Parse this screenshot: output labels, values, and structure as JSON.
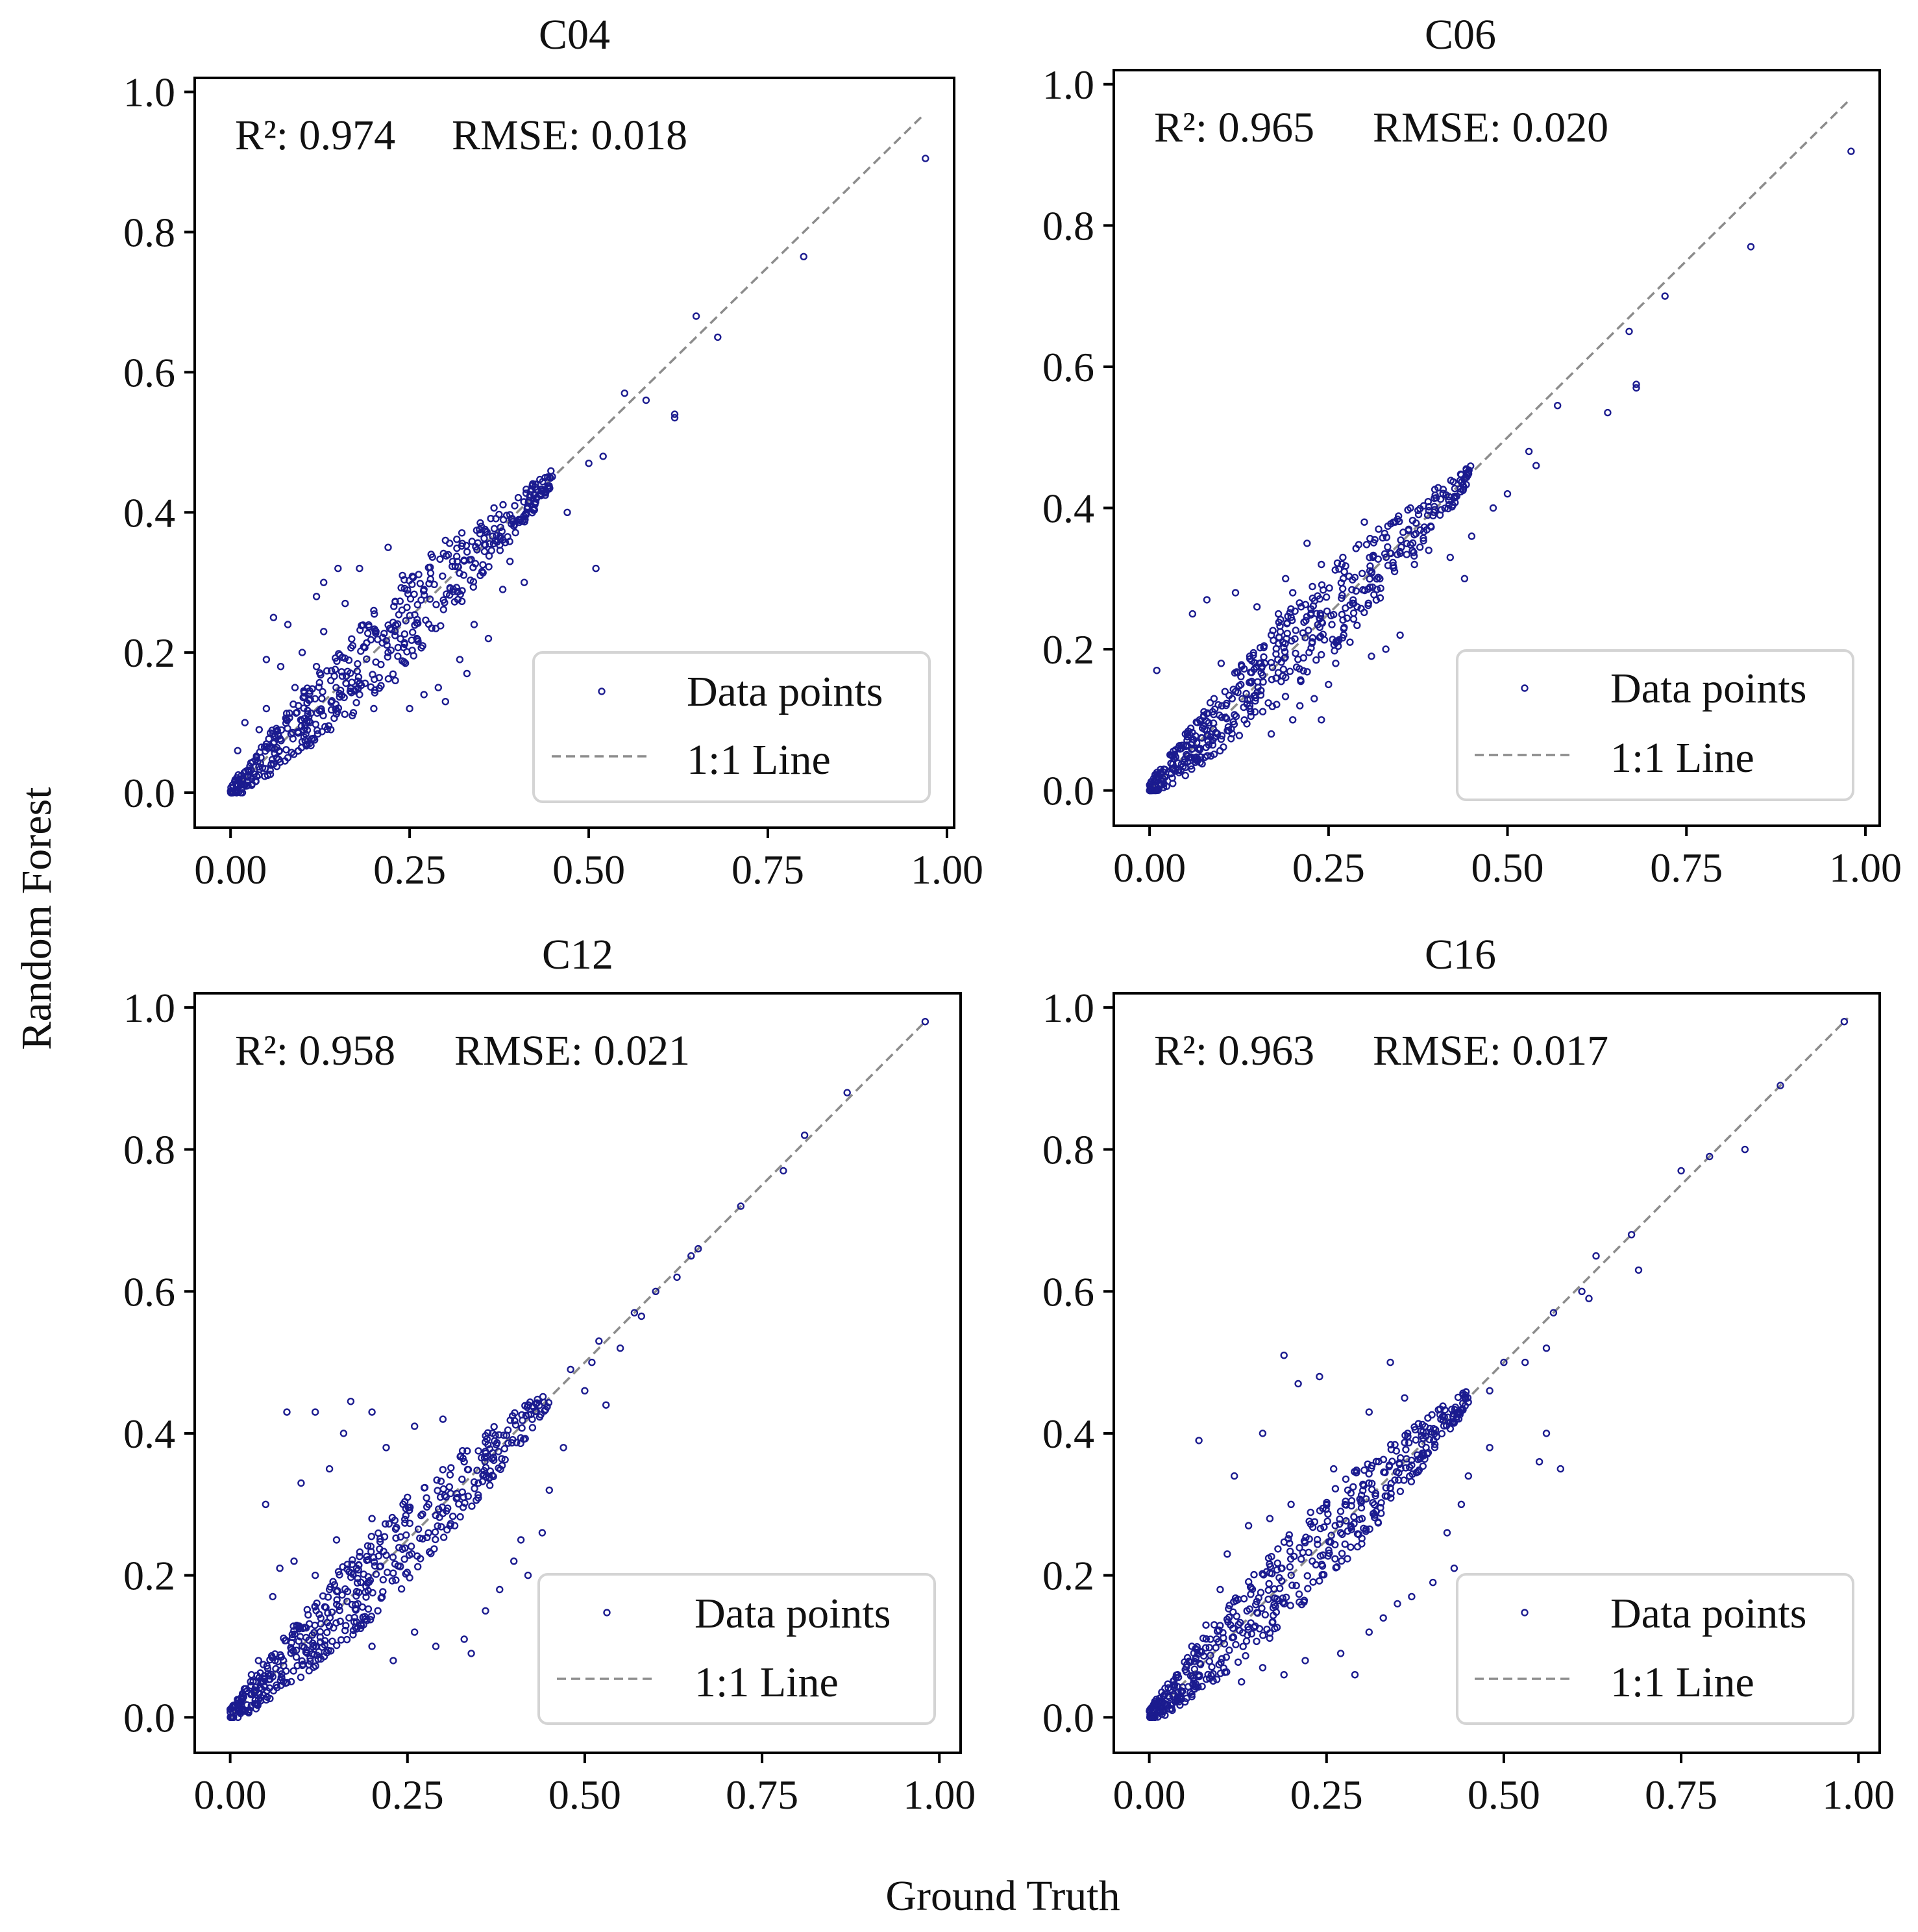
{
  "figure": {
    "x_label": "Ground Truth",
    "y_label": "Random Forest"
  },
  "colors": {
    "points": "#1b1b8f",
    "one_to_one_line": "#8c8c8c",
    "axes": "#000000",
    "legend_border": "#d4d4d4"
  },
  "chart_data": [
    {
      "type": "scatter",
      "title": "C04",
      "xlabel": "Ground Truth",
      "ylabel": "Random Forest",
      "xlim": [
        -0.05,
        1.01
      ],
      "ylim": [
        -0.05,
        1.02
      ],
      "xticks": [
        "0.00",
        "0.25",
        "0.50",
        "0.75",
        "1.00"
      ],
      "yticks": [
        "0.0",
        "0.2",
        "0.4",
        "0.6",
        "0.8",
        "1.0"
      ],
      "r2_label": "R²: 0.974",
      "rmse_label": "RMSE: 0.018",
      "legend": [
        "Data points",
        "1:1 Line"
      ],
      "legend_position": "lower right",
      "one_to_one_line": [
        0.0,
        0.967
      ],
      "points": [
        [
          0.97,
          0.905
        ],
        [
          0.8,
          0.765
        ],
        [
          0.65,
          0.68
        ],
        [
          0.68,
          0.65
        ],
        [
          0.62,
          0.54
        ],
        [
          0.62,
          0.535
        ],
        [
          0.55,
          0.57
        ],
        [
          0.58,
          0.56
        ],
        [
          0.52,
          0.48
        ],
        [
          0.5,
          0.47
        ],
        [
          0.51,
          0.32
        ],
        [
          0.47,
          0.4
        ],
        [
          0.44,
          0.43
        ],
        [
          0.41,
          0.3
        ],
        [
          0.39,
          0.33
        ],
        [
          0.38,
          0.29
        ],
        [
          0.06,
          0.25
        ],
        [
          0.08,
          0.24
        ],
        [
          0.12,
          0.28
        ],
        [
          0.15,
          0.32
        ],
        [
          0.18,
          0.32
        ],
        [
          0.13,
          0.3
        ],
        [
          0.3,
          0.36
        ],
        [
          0.28,
          0.34
        ],
        [
          0.24,
          0.31
        ],
        [
          0.22,
          0.35
        ],
        [
          0.25,
          0.12
        ],
        [
          0.27,
          0.14
        ],
        [
          0.23,
          0.16
        ],
        [
          0.29,
          0.15
        ],
        [
          0.3,
          0.13
        ],
        [
          0.2,
          0.12
        ],
        [
          0.17,
          0.11
        ],
        [
          0.14,
          0.09
        ],
        [
          0.11,
          0.07
        ],
        [
          0.09,
          0.15
        ],
        [
          0.07,
          0.18
        ],
        [
          0.05,
          0.19
        ],
        [
          0.1,
          0.2
        ],
        [
          0.13,
          0.23
        ],
        [
          0.16,
          0.27
        ],
        [
          0.2,
          0.26
        ],
        [
          0.36,
          0.22
        ],
        [
          0.34,
          0.24
        ],
        [
          0.32,
          0.19
        ],
        [
          0.33,
          0.17
        ],
        [
          0.35,
          0.38
        ],
        [
          0.31,
          0.33
        ],
        [
          0.01,
          0.06
        ],
        [
          0.02,
          0.1
        ],
        [
          0.04,
          0.09
        ],
        [
          0.05,
          0.12
        ],
        [
          0.03,
          0.02
        ],
        [
          0.08,
          0.05
        ],
        [
          0.12,
          0.18
        ],
        [
          0.14,
          0.16
        ],
        [
          0.18,
          0.14
        ],
        [
          0.22,
          0.2
        ],
        [
          0.26,
          0.22
        ],
        [
          0.27,
          0.29
        ]
      ]
    },
    {
      "type": "scatter",
      "title": "C06",
      "xlabel": "Ground Truth",
      "ylabel": "Random Forest",
      "xlim": [
        -0.05,
        1.02
      ],
      "ylim": [
        -0.05,
        1.02
      ],
      "xticks": [
        "0.00",
        "0.25",
        "0.50",
        "0.75",
        "1.00"
      ],
      "yticks": [
        "0.0",
        "0.2",
        "0.4",
        "0.6",
        "0.8",
        "1.0"
      ],
      "r2_label": "R²: 0.965",
      "rmse_label": "RMSE: 0.020",
      "legend": [
        "Data points",
        "1:1 Line"
      ],
      "legend_position": "lower right",
      "one_to_one_line": [
        0.0,
        0.975
      ],
      "points": [
        [
          0.98,
          0.905
        ],
        [
          0.84,
          0.77
        ],
        [
          0.72,
          0.7
        ],
        [
          0.67,
          0.65
        ],
        [
          0.68,
          0.575
        ],
        [
          0.68,
          0.57
        ],
        [
          0.64,
          0.535
        ],
        [
          0.57,
          0.545
        ],
        [
          0.53,
          0.48
        ],
        [
          0.54,
          0.46
        ],
        [
          0.5,
          0.42
        ],
        [
          0.48,
          0.4
        ],
        [
          0.45,
          0.36
        ],
        [
          0.42,
          0.33
        ],
        [
          0.44,
          0.3
        ],
        [
          0.39,
          0.34
        ],
        [
          0.37,
          0.32
        ],
        [
          0.01,
          0.17
        ],
        [
          0.06,
          0.25
        ],
        [
          0.08,
          0.27
        ],
        [
          0.12,
          0.28
        ],
        [
          0.15,
          0.26
        ],
        [
          0.2,
          0.28
        ],
        [
          0.22,
          0.35
        ],
        [
          0.24,
          0.32
        ],
        [
          0.27,
          0.33
        ],
        [
          0.3,
          0.38
        ],
        [
          0.32,
          0.37
        ],
        [
          0.17,
          0.22
        ],
        [
          0.14,
          0.19
        ],
        [
          0.1,
          0.18
        ],
        [
          0.12,
          0.14
        ],
        [
          0.14,
          0.12
        ],
        [
          0.17,
          0.08
        ],
        [
          0.2,
          0.1
        ],
        [
          0.25,
          0.15
        ],
        [
          0.23,
          0.13
        ],
        [
          0.21,
          0.12
        ],
        [
          0.26,
          0.18
        ],
        [
          0.24,
          0.1
        ],
        [
          0.33,
          0.2
        ],
        [
          0.35,
          0.22
        ],
        [
          0.31,
          0.19
        ],
        [
          0.28,
          0.21
        ],
        [
          0.03,
          0.05
        ],
        [
          0.05,
          0.08
        ],
        [
          0.07,
          0.1
        ],
        [
          0.02,
          0.03
        ],
        [
          0.04,
          0.06
        ],
        [
          0.09,
          0.13
        ],
        [
          0.11,
          0.09
        ],
        [
          0.19,
          0.3
        ],
        [
          0.18,
          0.25
        ],
        [
          0.29,
          0.26
        ]
      ]
    },
    {
      "type": "scatter",
      "title": "C12",
      "xlabel": "Ground Truth",
      "ylabel": "Random Forest",
      "xlim": [
        -0.05,
        1.03
      ],
      "ylim": [
        -0.05,
        1.02
      ],
      "xticks": [
        "0.00",
        "0.25",
        "0.50",
        "0.75",
        "1.00"
      ],
      "yticks": [
        "0.0",
        "0.2",
        "0.4",
        "0.6",
        "0.8",
        "1.0"
      ],
      "r2_label": "R²: 0.958",
      "rmse_label": "RMSE: 0.021",
      "legend": [
        "Data points",
        "1:1 Line"
      ],
      "legend_position": "lower right",
      "one_to_one_line": [
        0.0,
        0.98
      ],
      "points": [
        [
          0.98,
          0.98
        ],
        [
          0.87,
          0.88
        ],
        [
          0.81,
          0.82
        ],
        [
          0.78,
          0.77
        ],
        [
          0.72,
          0.72
        ],
        [
          0.66,
          0.66
        ],
        [
          0.65,
          0.65
        ],
        [
          0.63,
          0.62
        ],
        [
          0.6,
          0.6
        ],
        [
          0.57,
          0.57
        ],
        [
          0.58,
          0.565
        ],
        [
          0.55,
          0.52
        ],
        [
          0.52,
          0.53
        ],
        [
          0.51,
          0.5
        ],
        [
          0.48,
          0.49
        ],
        [
          0.5,
          0.46
        ],
        [
          0.53,
          0.44
        ],
        [
          0.47,
          0.38
        ],
        [
          0.45,
          0.32
        ],
        [
          0.44,
          0.26
        ],
        [
          0.41,
          0.25
        ],
        [
          0.05,
          0.3
        ],
        [
          0.08,
          0.43
        ],
        [
          0.12,
          0.43
        ],
        [
          0.17,
          0.445
        ],
        [
          0.2,
          0.43
        ],
        [
          0.14,
          0.35
        ],
        [
          0.1,
          0.33
        ],
        [
          0.16,
          0.4
        ],
        [
          0.22,
          0.38
        ],
        [
          0.26,
          0.41
        ],
        [
          0.3,
          0.42
        ],
        [
          0.33,
          0.36
        ],
        [
          0.37,
          0.4
        ],
        [
          0.09,
          0.22
        ],
        [
          0.07,
          0.21
        ],
        [
          0.06,
          0.17
        ],
        [
          0.12,
          0.2
        ],
        [
          0.14,
          0.18
        ],
        [
          0.18,
          0.16
        ],
        [
          0.2,
          0.1
        ],
        [
          0.23,
          0.08
        ],
        [
          0.26,
          0.12
        ],
        [
          0.29,
          0.1
        ],
        [
          0.33,
          0.11
        ],
        [
          0.34,
          0.09
        ],
        [
          0.36,
          0.15
        ],
        [
          0.38,
          0.18
        ],
        [
          0.4,
          0.22
        ],
        [
          0.42,
          0.2
        ],
        [
          0.02,
          0.04
        ],
        [
          0.03,
          0.06
        ],
        [
          0.04,
          0.08
        ],
        [
          0.01,
          0.02
        ],
        [
          0.15,
          0.25
        ],
        [
          0.2,
          0.28
        ],
        [
          0.25,
          0.31
        ],
        [
          0.28,
          0.3
        ],
        [
          0.31,
          0.27
        ],
        [
          0.35,
          0.33
        ]
      ]
    },
    {
      "type": "scatter",
      "title": "C16",
      "xlabel": "Ground Truth",
      "ylabel": "Random Forest",
      "xlim": [
        -0.05,
        1.03
      ],
      "ylim": [
        -0.05,
        1.02
      ],
      "xticks": [
        "0.00",
        "0.25",
        "0.50",
        "0.75",
        "1.00"
      ],
      "yticks": [
        "0.0",
        "0.2",
        "0.4",
        "0.6",
        "0.8",
        "1.0"
      ],
      "r2_label": "R²: 0.963",
      "rmse_label": "RMSE: 0.017",
      "legend": [
        "Data points",
        "1:1 Line"
      ],
      "legend_position": "lower right",
      "one_to_one_line": [
        0.0,
        0.985
      ],
      "points": [
        [
          0.98,
          0.98
        ],
        [
          0.89,
          0.89
        ],
        [
          0.84,
          0.8
        ],
        [
          0.79,
          0.79
        ],
        [
          0.75,
          0.77
        ],
        [
          0.68,
          0.68
        ],
        [
          0.69,
          0.63
        ],
        [
          0.63,
          0.65
        ],
        [
          0.61,
          0.6
        ],
        [
          0.62,
          0.59
        ],
        [
          0.57,
          0.57
        ],
        [
          0.56,
          0.52
        ],
        [
          0.53,
          0.5
        ],
        [
          0.5,
          0.5
        ],
        [
          0.48,
          0.46
        ],
        [
          0.56,
          0.4
        ],
        [
          0.58,
          0.35
        ],
        [
          0.55,
          0.36
        ],
        [
          0.48,
          0.38
        ],
        [
          0.45,
          0.34
        ],
        [
          0.44,
          0.3
        ],
        [
          0.42,
          0.26
        ],
        [
          0.43,
          0.21
        ],
        [
          0.4,
          0.19
        ],
        [
          0.37,
          0.17
        ],
        [
          0.35,
          0.16
        ],
        [
          0.33,
          0.14
        ],
        [
          0.31,
          0.12
        ],
        [
          0.29,
          0.06
        ],
        [
          0.27,
          0.09
        ],
        [
          0.22,
          0.08
        ],
        [
          0.19,
          0.06
        ],
        [
          0.16,
          0.07
        ],
        [
          0.13,
          0.05
        ],
        [
          0.07,
          0.39
        ],
        [
          0.12,
          0.34
        ],
        [
          0.16,
          0.4
        ],
        [
          0.19,
          0.51
        ],
        [
          0.21,
          0.47
        ],
        [
          0.24,
          0.48
        ],
        [
          0.34,
          0.5
        ],
        [
          0.31,
          0.43
        ],
        [
          0.36,
          0.45
        ],
        [
          0.26,
          0.35
        ],
        [
          0.2,
          0.3
        ],
        [
          0.17,
          0.28
        ],
        [
          0.14,
          0.27
        ],
        [
          0.11,
          0.23
        ],
        [
          0.1,
          0.18
        ],
        [
          0.08,
          0.13
        ],
        [
          0.06,
          0.1
        ],
        [
          0.04,
          0.06
        ],
        [
          0.02,
          0.03
        ],
        [
          0.01,
          0.02
        ],
        [
          0.23,
          0.22
        ],
        [
          0.27,
          0.26
        ],
        [
          0.3,
          0.28
        ],
        [
          0.32,
          0.29
        ],
        [
          0.28,
          0.32
        ],
        [
          0.25,
          0.3
        ]
      ]
    }
  ]
}
